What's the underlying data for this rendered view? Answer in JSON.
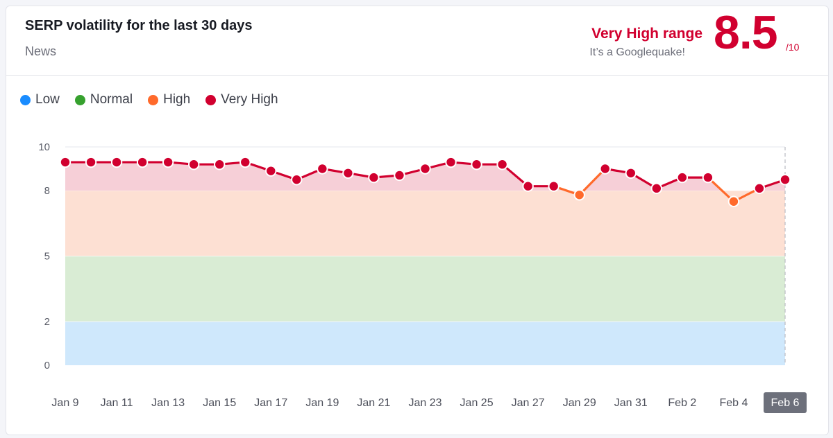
{
  "header": {
    "title": "SERP volatility for the last 30 days",
    "category": "News",
    "range_label": "Very High range",
    "range_subtext": "It’s a Googlequake!",
    "score": "8.5",
    "score_max": "/10"
  },
  "colors": {
    "low": "#1a8cff",
    "normal": "#36a12e",
    "high": "#ff6a2b",
    "very_high": "#d1002f",
    "band_low": "#cfe8fc",
    "band_normal": "#d9ecd4",
    "band_high": "#fde0d3",
    "band_very_high": "#f6cfd7"
  },
  "chart_data": {
    "type": "line",
    "title": "SERP volatility for the last 30 days",
    "ylim": [
      0,
      10
    ],
    "y_ticks": [
      0,
      2,
      5,
      8,
      10
    ],
    "x_tick_labels": [
      "Jan 9",
      "Jan 11",
      "Jan 13",
      "Jan 15",
      "Jan 17",
      "Jan 19",
      "Jan 21",
      "Jan 23",
      "Jan 25",
      "Jan 27",
      "Jan 29",
      "Jan 31",
      "Feb 2",
      "Feb 4",
      "Feb 6"
    ],
    "highlighted_tick": "Feb 6",
    "legend": [
      {
        "name": "Low",
        "range": [
          0,
          2
        ]
      },
      {
        "name": "Normal",
        "range": [
          2,
          5
        ]
      },
      {
        "name": "High",
        "range": [
          5,
          8
        ]
      },
      {
        "name": "Very High",
        "range": [
          8,
          10
        ]
      }
    ],
    "legend_position": "top-left",
    "grid": false,
    "series": [
      {
        "x": [
          "Jan 9",
          "Jan 10",
          "Jan 11",
          "Jan 12",
          "Jan 13",
          "Jan 14",
          "Jan 15",
          "Jan 16",
          "Jan 17",
          "Jan 18",
          "Jan 19",
          "Jan 20",
          "Jan 21",
          "Jan 22",
          "Jan 23",
          "Jan 24",
          "Jan 25",
          "Jan 26",
          "Jan 27",
          "Jan 28",
          "Jan 29",
          "Jan 30",
          "Jan 31",
          "Feb 1",
          "Feb 2",
          "Feb 3",
          "Feb 4",
          "Feb 5",
          "Feb 6"
        ],
        "values": [
          9.3,
          9.3,
          9.3,
          9.3,
          9.3,
          9.2,
          9.2,
          9.3,
          8.9,
          8.5,
          9.0,
          8.8,
          8.6,
          8.7,
          9.0,
          9.3,
          9.2,
          9.2,
          8.2,
          8.2,
          7.8,
          9.0,
          8.8,
          8.1,
          8.6,
          8.6,
          7.5,
          8.1,
          8.5
        ]
      }
    ]
  }
}
